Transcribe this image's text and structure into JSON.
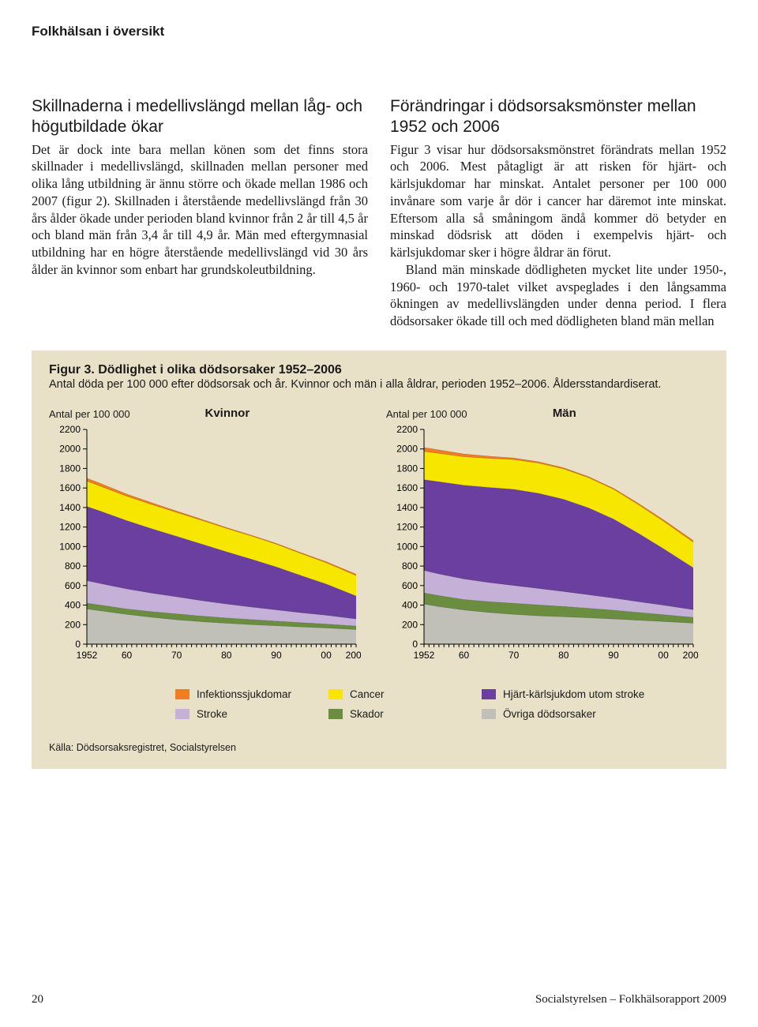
{
  "running_head": "Folkhälsan i översikt",
  "left": {
    "subhead": "Skillnaderna i medellivslängd mellan låg- och högutbildade ökar",
    "para": "Det är dock inte bara mellan könen som det finns stora skillnader i medellivslängd, skillnaden mellan personer med olika lång utbildning är ännu större och ökade mellan 1986 och 2007 (figur 2). Skillnaden i återstående medellivslängd från 30 års ålder ökade under perioden bland kvinnor från 2 år till 4,5 år och bland män från 3,4 år till 4,9 år. Män med eftergymnasial utbildning har en högre återstående medellivslängd vid 30 års ålder än kvinnor som enbart har grundskoleutbildning."
  },
  "right": {
    "subhead": "Förändringar i dödsorsaksmönster mellan 1952 och 2006",
    "para1": "Figur 3 visar hur dödsorsaksmönstret förändrats mellan 1952 och 2006. Mest påtagligt är att risken för hjärt- och kärlsjukdomar har minskat. Antalet personer per 100 000 invånare som varje år dör i cancer har däremot inte minskat. Eftersom alla så småningom ändå kommer dö betyder en minskad dödsrisk att döden i exempelvis hjärt- och kärlsjukdomar sker i högre åldrar än förut.",
    "para2": "Bland män minskade dödligheten mycket lite under 1950-, 1960- och 1970-talet vilket avspeglades i den långsamma ökningen av medellivslängden under denna period. I flera dödsorsaker ökade till och med dödligheten bland män mellan"
  },
  "figure": {
    "title_strong": "Figur 3. Dödlighet i olika dödsorsaker 1952–2006",
    "desc": "Antal döda per 100 000 efter dödsorsak och år. Kvinnor och män i alla åldrar, perioden 1952–2006. Åldersstandardiserat.",
    "y_axis_label": "Antal per 100 000",
    "panels": [
      {
        "name": "Kvinnor",
        "series_ref": "kvinnor"
      },
      {
        "name": "Män",
        "series_ref": "man"
      }
    ],
    "y": {
      "min": 0,
      "max": 2200,
      "step": 200
    },
    "x": {
      "min": 1952,
      "max": 2006,
      "labels": [
        {
          "v": 1952,
          "t": "1952"
        },
        {
          "v": 1960,
          "t": "60"
        },
        {
          "v": 1970,
          "t": "70"
        },
        {
          "v": 1980,
          "t": "80"
        },
        {
          "v": 1990,
          "t": "90"
        },
        {
          "v": 2000,
          "t": "00"
        },
        {
          "v": 2006,
          "t": "2006"
        }
      ]
    },
    "series_order": [
      "ovriga",
      "skador",
      "stroke",
      "hjart",
      "cancer",
      "infektion"
    ],
    "colors": {
      "infektion": "#f37b21",
      "cancer": "#f7e600",
      "hjart": "#6b3fa0",
      "stroke": "#c5b1d8",
      "skador": "#6a8d3f",
      "ovriga": "#c0bfb8",
      "axis": "#000000",
      "bg": "#e8e1c8"
    },
    "years": [
      1952,
      1955,
      1960,
      1965,
      1970,
      1975,
      1980,
      1985,
      1990,
      1995,
      2000,
      2006
    ],
    "kvinnor": {
      "infektion": [
        30,
        28,
        22,
        18,
        14,
        11,
        9,
        8,
        8,
        9,
        11,
        14
      ],
      "cancer": [
        260,
        255,
        250,
        248,
        245,
        243,
        240,
        238,
        233,
        225,
        218,
        210
      ],
      "hjart": [
        760,
        740,
        700,
        660,
        620,
        580,
        535,
        490,
        440,
        380,
        320,
        235
      ],
      "stroke": [
        230,
        220,
        205,
        190,
        175,
        158,
        142,
        128,
        115,
        102,
        90,
        72
      ],
      "skador": [
        60,
        58,
        56,
        58,
        60,
        58,
        55,
        52,
        48,
        44,
        40,
        36
      ],
      "ovriga": [
        360,
        340,
        305,
        275,
        250,
        230,
        214,
        200,
        188,
        176,
        166,
        150
      ]
    },
    "man": {
      "infektion": [
        40,
        36,
        28,
        22,
        16,
        13,
        11,
        10,
        10,
        12,
        14,
        17
      ],
      "cancer": [
        290,
        290,
        292,
        298,
        305,
        310,
        312,
        310,
        305,
        295,
        282,
        262
      ],
      "hjart": [
        930,
        945,
        960,
        975,
        985,
        975,
        945,
        890,
        810,
        700,
        580,
        430
      ],
      "stroke": [
        230,
        222,
        210,
        196,
        182,
        168,
        153,
        138,
        124,
        110,
        97,
        78
      ],
      "skador": [
        115,
        112,
        108,
        110,
        114,
        112,
        106,
        98,
        90,
        80,
        70,
        60
      ],
      "ovriga": [
        410,
        385,
        350,
        325,
        305,
        290,
        280,
        270,
        258,
        245,
        232,
        215
      ]
    },
    "legend": [
      {
        "key": "infektion",
        "label": "Infektionssjukdomar"
      },
      {
        "key": "cancer",
        "label": "Cancer"
      },
      {
        "key": "hjart",
        "label": "Hjärt-kärlsjukdom utom stroke"
      },
      {
        "key": "stroke",
        "label": "Stroke"
      },
      {
        "key": "skador",
        "label": "Skador"
      },
      {
        "key": "ovriga",
        "label": "Övriga dödsorsaker"
      }
    ],
    "source": "Källa: Dödsorsaksregistret, Socialstyrelsen"
  },
  "footer": {
    "page_number": "20",
    "pub": "Socialstyrelsen – Folkhälsorapport 2009"
  }
}
